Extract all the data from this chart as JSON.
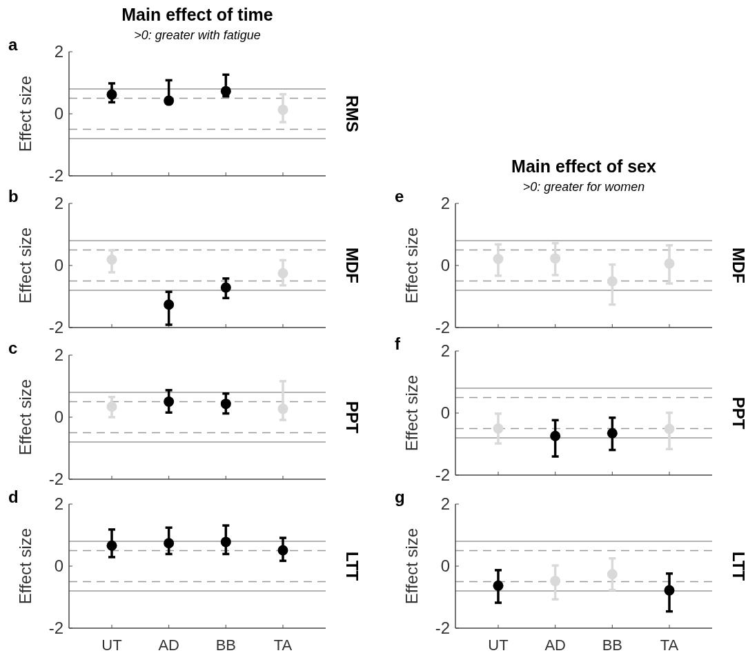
{
  "chart_data": [
    {
      "type": "scatter",
      "title": "Main effect of time",
      "subtitle": ">0: greater with fatigue",
      "annotations": [
        "a"
      ],
      "ylabel": "Effect size",
      "y2label": "RMS",
      "categories": [
        null,
        null,
        null,
        null
      ],
      "tick_labels": "y",
      "ylim": [
        -2,
        2
      ],
      "yticks": [
        -2,
        0,
        2
      ],
      "marker": "circle",
      "series": [
        {
          "values": [
            0.62,
            0.42,
            0.73,
            0.13
          ],
          "colors": [
            "#000000",
            "#000000",
            "#000000",
            "#d9d9d9"
          ],
          "errors": [
            [
              0.37,
              0.98
            ],
            [
              0.42,
              1.08
            ],
            [
              0.56,
              1.26
            ],
            [
              -0.27,
              0.63
            ]
          ]
        }
      ],
      "ref_lines": [
        {
          "axis": "y",
          "value": 0.8,
          "color": "#999999",
          "line_style": "solid"
        },
        {
          "axis": "y",
          "value": 0.5,
          "color": "#999999",
          "line_style": "dashed"
        },
        {
          "axis": "y",
          "value": -0.5,
          "color": "#999999",
          "line_style": "dashed"
        },
        {
          "axis": "y",
          "value": -0.8,
          "color": "#999999",
          "line_style": "solid"
        }
      ]
    },
    {
      "type": "scatter",
      "annotations": [
        "b"
      ],
      "ylabel": "Effect size",
      "y2label": "MDF",
      "categories": [
        null,
        null,
        null,
        null
      ],
      "tick_labels": "y",
      "ylim": [
        -2,
        2
      ],
      "yticks": [
        -2,
        0,
        2
      ],
      "marker": "circle",
      "series": [
        {
          "values": [
            0.19,
            -1.26,
            -0.71,
            -0.25
          ],
          "colors": [
            "#d9d9d9",
            "#000000",
            "#000000",
            "#d9d9d9"
          ],
          "errors": [
            [
              -0.22,
              0.49
            ],
            [
              -1.91,
              -0.85
            ],
            [
              -1.05,
              -0.42
            ],
            [
              -0.64,
              0.17
            ]
          ]
        }
      ],
      "ref_lines": [
        {
          "axis": "y",
          "value": 0.8,
          "color": "#999999",
          "line_style": "solid"
        },
        {
          "axis": "y",
          "value": 0.5,
          "color": "#999999",
          "line_style": "dashed"
        },
        {
          "axis": "y",
          "value": -0.5,
          "color": "#999999",
          "line_style": "dashed"
        },
        {
          "axis": "y",
          "value": -0.8,
          "color": "#999999",
          "line_style": "solid"
        }
      ]
    },
    {
      "type": "scatter",
      "annotations": [
        "c"
      ],
      "ylabel": "Effect size",
      "y2label": "PPT",
      "categories": [
        null,
        null,
        null,
        null
      ],
      "tick_labels": "y",
      "ylim": [
        -2,
        2
      ],
      "yticks": [
        -2,
        0,
        2
      ],
      "marker": "circle",
      "series": [
        {
          "values": [
            0.34,
            0.5,
            0.43,
            0.27
          ],
          "colors": [
            "#d9d9d9",
            "#000000",
            "#000000",
            "#d9d9d9"
          ],
          "errors": [
            [
              0.0,
              0.65
            ],
            [
              0.15,
              0.87
            ],
            [
              0.12,
              0.76
            ],
            [
              -0.09,
              1.16
            ]
          ]
        }
      ],
      "ref_lines": [
        {
          "axis": "y",
          "value": 0.8,
          "color": "#999999",
          "line_style": "solid"
        },
        {
          "axis": "y",
          "value": 0.5,
          "color": "#999999",
          "line_style": "dashed"
        },
        {
          "axis": "y",
          "value": -0.5,
          "color": "#999999",
          "line_style": "dashed"
        },
        {
          "axis": "y",
          "value": -0.8,
          "color": "#999999",
          "line_style": "solid"
        }
      ]
    },
    {
      "type": "scatter",
      "annotations": [
        "d"
      ],
      "ylabel": "Effect size",
      "y2label": "LTT",
      "categories": [
        "UT",
        "AD",
        "BB",
        "TA"
      ],
      "ylim": [
        -2,
        2
      ],
      "yticks": [
        -2,
        0,
        2
      ],
      "marker": "circle",
      "series": [
        {
          "values": [
            0.66,
            0.74,
            0.78,
            0.51
          ],
          "colors": [
            "#000000",
            "#000000",
            "#000000",
            "#000000"
          ],
          "errors": [
            [
              0.29,
              1.18
            ],
            [
              0.39,
              1.24
            ],
            [
              0.39,
              1.31
            ],
            [
              0.17,
              0.91
            ]
          ]
        }
      ],
      "ref_lines": [
        {
          "axis": "y",
          "value": 0.8,
          "color": "#999999",
          "line_style": "solid"
        },
        {
          "axis": "y",
          "value": 0.5,
          "color": "#999999",
          "line_style": "dashed"
        },
        {
          "axis": "y",
          "value": -0.5,
          "color": "#999999",
          "line_style": "dashed"
        },
        {
          "axis": "y",
          "value": -0.8,
          "color": "#999999",
          "line_style": "solid"
        }
      ]
    },
    {
      "type": "scatter",
      "title": "Main effect of sex",
      "subtitle": ">0: greater for women",
      "annotations": [
        "e"
      ],
      "ylabel": "Effect size",
      "y2label": "MDF",
      "categories": [
        null,
        null,
        null,
        null
      ],
      "tick_labels": "y",
      "ylim": [
        -2,
        2
      ],
      "yticks": [
        -2,
        0,
        2
      ],
      "marker": "circle",
      "series": [
        {
          "values": [
            0.21,
            0.23,
            -0.51,
            0.06
          ],
          "colors": [
            "#d9d9d9",
            "#d9d9d9",
            "#d9d9d9",
            "#d9d9d9"
          ],
          "errors": [
            [
              -0.33,
              0.68
            ],
            [
              -0.31,
              0.72
            ],
            [
              -1.26,
              0.03
            ],
            [
              -0.58,
              0.65
            ]
          ]
        }
      ],
      "ref_lines": [
        {
          "axis": "y",
          "value": 0.8,
          "color": "#999999",
          "line_style": "solid"
        },
        {
          "axis": "y",
          "value": 0.5,
          "color": "#999999",
          "line_style": "dashed"
        },
        {
          "axis": "y",
          "value": -0.5,
          "color": "#999999",
          "line_style": "dashed"
        },
        {
          "axis": "y",
          "value": -0.8,
          "color": "#999999",
          "line_style": "solid"
        }
      ]
    },
    {
      "type": "scatter",
      "annotations": [
        "f"
      ],
      "ylabel": "Effect size",
      "y2label": "PPT",
      "categories": [
        null,
        null,
        null,
        null
      ],
      "tick_labels": "y",
      "ylim": [
        -2,
        2
      ],
      "yticks": [
        -2,
        0,
        2
      ],
      "marker": "circle",
      "series": [
        {
          "values": [
            -0.5,
            -0.74,
            -0.65,
            -0.51
          ],
          "colors": [
            "#d9d9d9",
            "#000000",
            "#000000",
            "#d9d9d9"
          ],
          "errors": [
            [
              -0.98,
              -0.02
            ],
            [
              -1.4,
              -0.23
            ],
            [
              -1.19,
              -0.15
            ],
            [
              -1.16,
              0.01
            ]
          ]
        }
      ],
      "ref_lines": [
        {
          "axis": "y",
          "value": 0.8,
          "color": "#999999",
          "line_style": "solid"
        },
        {
          "axis": "y",
          "value": 0.5,
          "color": "#999999",
          "line_style": "dashed"
        },
        {
          "axis": "y",
          "value": -0.5,
          "color": "#999999",
          "line_style": "dashed"
        },
        {
          "axis": "y",
          "value": -0.8,
          "color": "#999999",
          "line_style": "solid"
        }
      ]
    },
    {
      "type": "scatter",
      "annotations": [
        "g"
      ],
      "ylabel": "Effect size",
      "y2label": "LTT",
      "categories": [
        "UT",
        "AD",
        "BB",
        "TA"
      ],
      "ylim": [
        -2,
        2
      ],
      "yticks": [
        -2,
        0,
        2
      ],
      "marker": "circle",
      "series": [
        {
          "values": [
            -0.63,
            -0.48,
            -0.26,
            -0.78
          ],
          "colors": [
            "#000000",
            "#d9d9d9",
            "#d9d9d9",
            "#000000"
          ],
          "errors": [
            [
              -1.18,
              -0.13
            ],
            [
              -1.07,
              0.02
            ],
            [
              -0.77,
              0.25
            ],
            [
              -1.46,
              -0.24
            ]
          ]
        }
      ],
      "ref_lines": [
        {
          "axis": "y",
          "value": 0.8,
          "color": "#999999",
          "line_style": "solid"
        },
        {
          "axis": "y",
          "value": 0.5,
          "color": "#999999",
          "line_style": "dashed"
        },
        {
          "axis": "y",
          "value": -0.5,
          "color": "#999999",
          "line_style": "dashed"
        },
        {
          "axis": "y",
          "value": -0.8,
          "color": "#999999",
          "line_style": "solid"
        }
      ]
    }
  ]
}
